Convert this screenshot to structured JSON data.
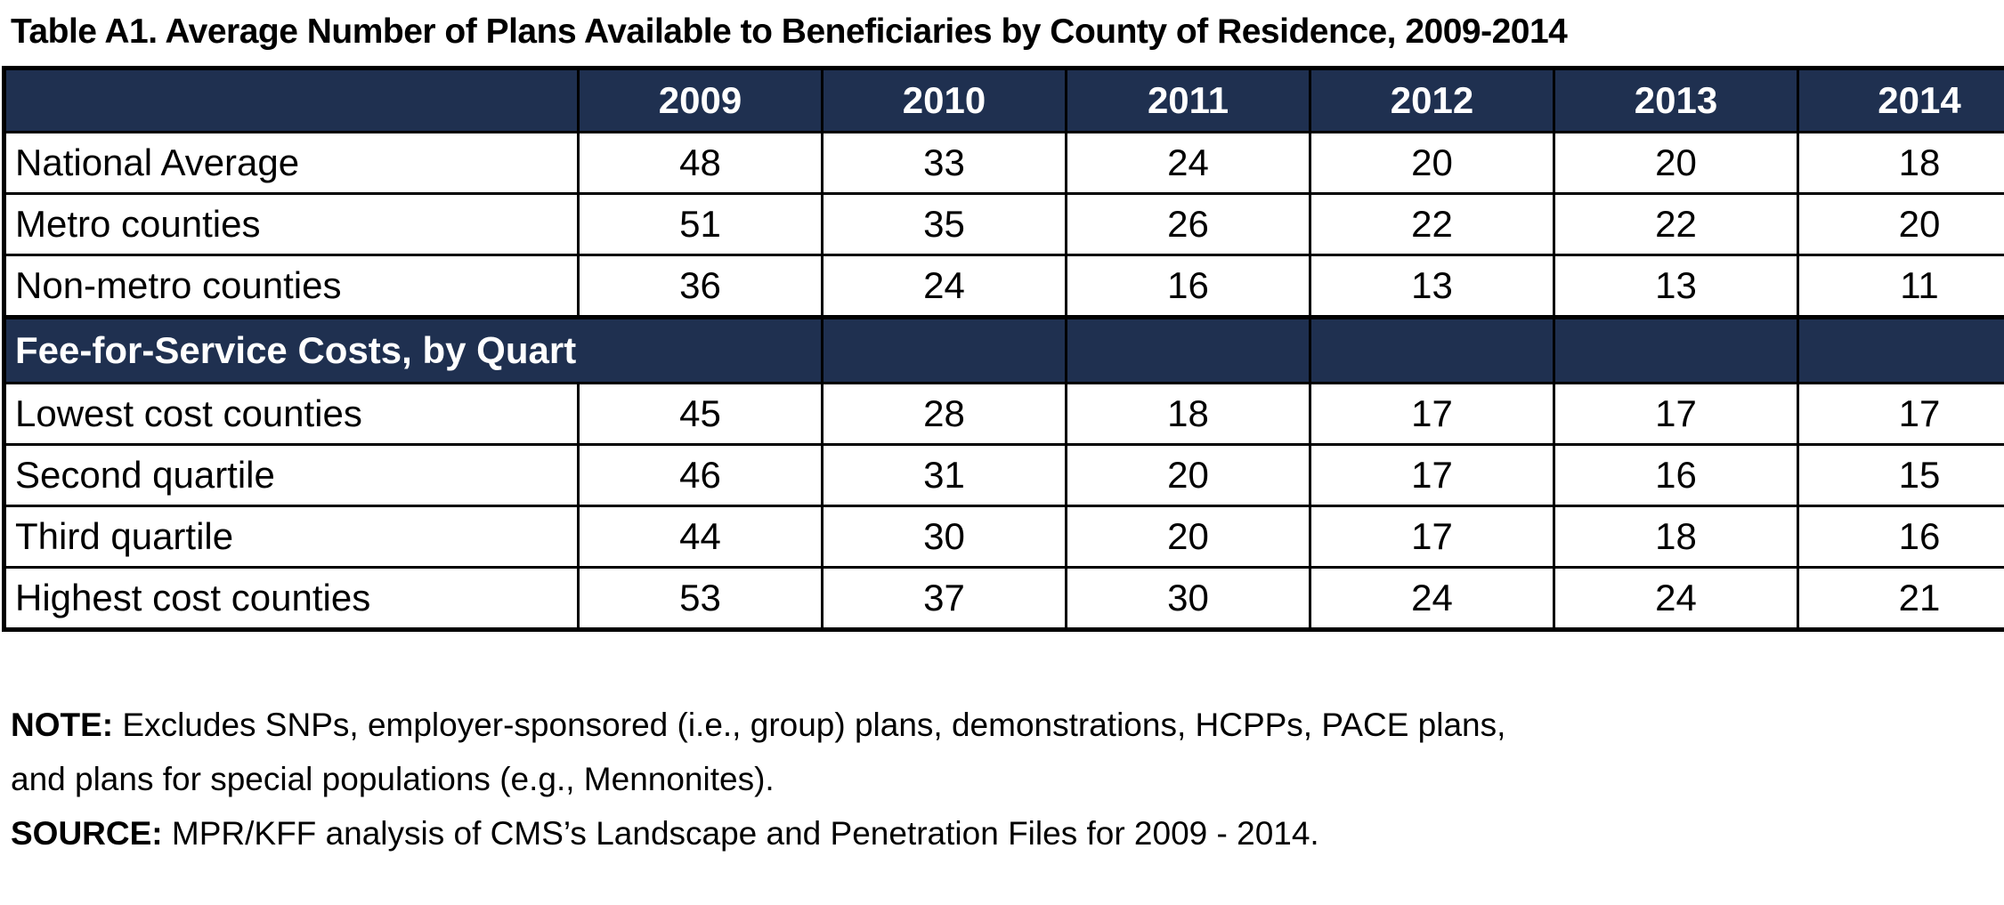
{
  "title": "Table A1.  Average Number of Plans Available to Beneficiaries by County of Residence, 2009-2014",
  "table": {
    "header_label": "",
    "years": [
      "2009",
      "2010",
      "2011",
      "2012",
      "2013",
      "2014"
    ],
    "group1_rows": [
      {
        "label": "National Average",
        "values": [
          "48",
          "33",
          "24",
          "20",
          "20",
          "18"
        ]
      },
      {
        "label": "Metro counties",
        "values": [
          "51",
          "35",
          "26",
          "22",
          "22",
          "20"
        ]
      },
      {
        "label": "Non-metro counties",
        "values": [
          "36",
          "24",
          "16",
          "13",
          "13",
          "11"
        ]
      }
    ],
    "section_label": "Fee-for-Service Costs, by Quartile",
    "group2_rows": [
      {
        "label": "Lowest cost counties",
        "values": [
          "45",
          "28",
          "18",
          "17",
          "17",
          "17"
        ]
      },
      {
        "label": "Second quartile",
        "values": [
          "46",
          "31",
          "20",
          "17",
          "16",
          "15"
        ]
      },
      {
        "label": "Third quartile",
        "values": [
          "44",
          "30",
          "20",
          "17",
          "18",
          "16"
        ]
      },
      {
        "label": "Highest cost counties",
        "values": [
          "53",
          "37",
          "30",
          "24",
          "24",
          "21"
        ]
      }
    ]
  },
  "notes": {
    "note_label": "NOTE:",
    "note_line1": " Excludes SNPs, employer-sponsored (i.e., group) plans, demonstrations, HCPPs, PACE plans,",
    "note_line2": "and plans for special populations (e.g., Mennonites).",
    "source_label": "SOURCE:",
    "source_text": "  MPR/KFF analysis of CMS’s Landscape and Penetration Files for 2009 - 2014."
  },
  "colors": {
    "header_bg": "#1f3050",
    "header_text": "#ffffff",
    "border": "#000000"
  }
}
